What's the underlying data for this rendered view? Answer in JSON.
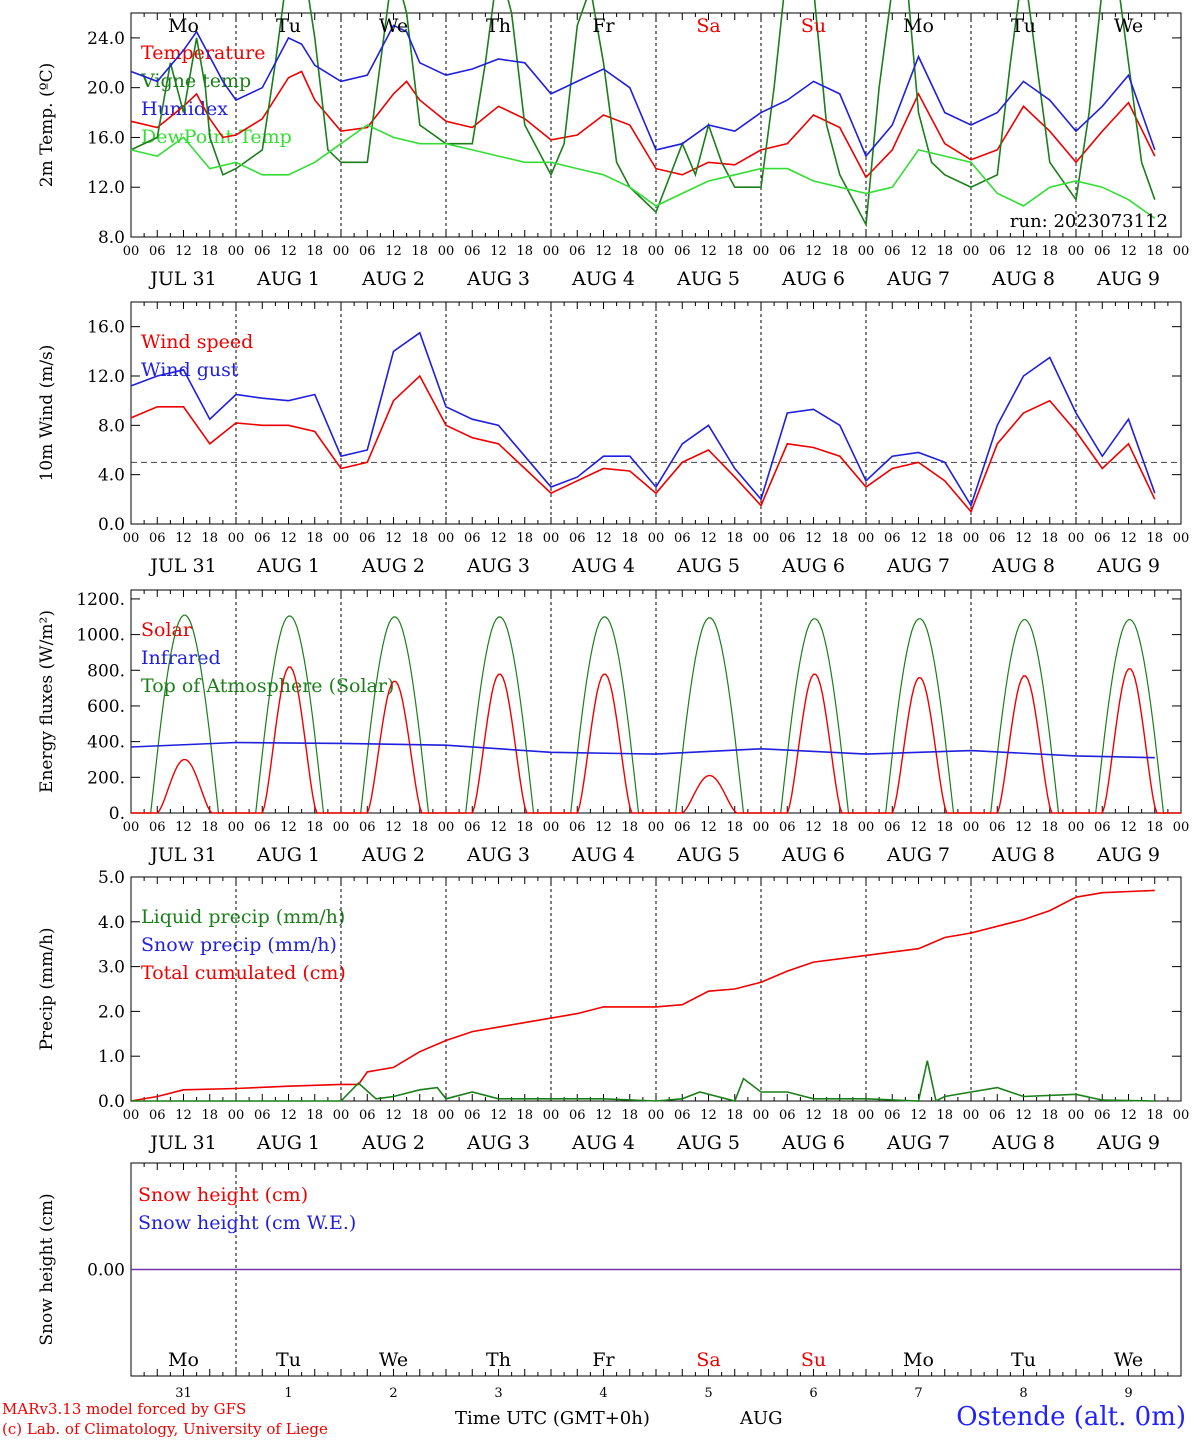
{
  "run_label": "run: 2023073112",
  "days": [
    {
      "dow": "Mo",
      "date": "JUL 31",
      "day": "31",
      "weekend": false
    },
    {
      "dow": "Tu",
      "date": "AUG  1",
      "day": "1",
      "weekend": false
    },
    {
      "dow": "We",
      "date": "AUG  2",
      "day": "2",
      "weekend": false
    },
    {
      "dow": "Th",
      "date": "AUG  3",
      "day": "3",
      "weekend": false
    },
    {
      "dow": "Fr",
      "date": "AUG  4",
      "day": "4",
      "weekend": false
    },
    {
      "dow": "Sa",
      "date": "AUG  5",
      "day": "5",
      "weekend": true
    },
    {
      "dow": "Su",
      "date": "AUG  6",
      "day": "6",
      "weekend": true
    },
    {
      "dow": "Mo",
      "date": "AUG  7",
      "day": "7",
      "weekend": false
    },
    {
      "dow": "Tu",
      "date": "AUG  8",
      "day": "8",
      "weekend": false
    },
    {
      "dow": "We",
      "date": "AUG  9",
      "day": "9",
      "weekend": false
    }
  ],
  "hour_ticks": [
    "00",
    "06",
    "12",
    "18"
  ],
  "footer": {
    "credit_line1": "MARv3.13 model forced by GFS",
    "credit_line2": "(c) Lab. of Climatology, University of Liege",
    "xaxis_title": "Time UTC (GMT+0h)",
    "month": "AUG",
    "station": "Ostende (alt. 0m)"
  },
  "colors": {
    "red": "#ee0000",
    "green": "#1a7f1a",
    "blue": "#1f1fdd",
    "lightgreen": "#33dd33",
    "purple": "#7733aa"
  },
  "chart_data": [
    {
      "type": "line",
      "ylabel": "2m Temp. (ºC)",
      "ylim": [
        8,
        26
      ],
      "yticks": [
        "8.0",
        "12.0",
        "16.0",
        "20.0",
        "24.0"
      ],
      "ytick_values": [
        8,
        12,
        16,
        20,
        24
      ],
      "show_dow": true,
      "legend": [
        {
          "name": "Temperature",
          "color": "#ee0000"
        },
        {
          "name": "Vigne temp",
          "color": "#1a7f1a"
        },
        {
          "name": "Humidex",
          "color": "#1f1fdd"
        },
        {
          "name": "DewPoint Temp",
          "color": "#33dd33"
        }
      ],
      "series": [
        {
          "name": "Temperature",
          "color": "#ee0000",
          "x": [
            0,
            6,
            12,
            15,
            18,
            21,
            24,
            30,
            36,
            39,
            42,
            48,
            54,
            60,
            63,
            66,
            72,
            78,
            84,
            90,
            96,
            102,
            108,
            114,
            120,
            126,
            132,
            138,
            144,
            150,
            156,
            162,
            168,
            174,
            180,
            186,
            192,
            198,
            204,
            210,
            216,
            222,
            228,
            234
          ],
          "y": [
            17.3,
            16.8,
            18.5,
            19.5,
            17.5,
            16,
            16.2,
            17.5,
            20.8,
            21.3,
            19,
            16.5,
            16.8,
            19.5,
            20.5,
            19,
            17.3,
            16.8,
            18.5,
            17.5,
            15.8,
            16.2,
            17.8,
            17,
            13.5,
            13,
            14,
            13.8,
            15,
            15.5,
            17.8,
            16.8,
            12.8,
            15,
            19.5,
            15.5,
            14.2,
            15,
            18.5,
            16.5,
            14,
            16.5,
            18.8,
            14.5
          ]
        },
        {
          "name": "Vigne temp",
          "color": "#1a7f1a",
          "x": [
            0,
            6,
            9,
            12,
            15,
            17,
            18,
            21,
            24,
            30,
            33,
            36,
            39,
            42,
            45,
            48,
            54,
            57,
            60,
            63,
            66,
            72,
            78,
            81,
            84,
            87,
            90,
            96,
            99,
            102,
            105,
            108,
            111,
            114,
            120,
            126,
            129,
            132,
            135,
            138,
            144,
            147,
            150,
            153,
            156,
            159,
            162,
            168,
            171,
            174,
            177,
            180,
            183,
            186,
            192,
            198,
            201,
            204,
            207,
            210,
            216,
            219,
            222,
            225,
            228,
            231,
            234
          ],
          "y": [
            15,
            16,
            22,
            18,
            24,
            20,
            16,
            13,
            13.5,
            15,
            22,
            30,
            31,
            24,
            15,
            14,
            14,
            22,
            30,
            26,
            17,
            15.5,
            15.5,
            22,
            30,
            26,
            17,
            13,
            15.5,
            25,
            28,
            22,
            14,
            12,
            10,
            15.5,
            13,
            17,
            14,
            12,
            12,
            20,
            30,
            33,
            28,
            17,
            13,
            9,
            20,
            28,
            30,
            18,
            14,
            13,
            12,
            13,
            22,
            30,
            22,
            14,
            11,
            18,
            28,
            30,
            22,
            14,
            11
          ]
        },
        {
          "name": "Humidex",
          "color": "#1f1fdd",
          "x": [
            0,
            6,
            12,
            15,
            18,
            21,
            24,
            30,
            36,
            39,
            42,
            48,
            54,
            60,
            63,
            66,
            72,
            78,
            84,
            90,
            96,
            102,
            108,
            114,
            120,
            126,
            132,
            138,
            144,
            150,
            156,
            162,
            168,
            174,
            180,
            186,
            192,
            198,
            204,
            210,
            216,
            222,
            228,
            234
          ],
          "y": [
            21.3,
            20.5,
            23,
            24.5,
            22.5,
            20.5,
            19,
            20,
            24,
            23.5,
            21.8,
            20.5,
            21,
            25,
            24.5,
            22,
            21,
            21.5,
            22.3,
            22,
            19.5,
            20.5,
            21.5,
            20,
            15,
            15.5,
            17,
            16.5,
            18,
            19,
            20.5,
            19.5,
            14.5,
            17,
            22.5,
            18,
            17,
            18,
            20.5,
            19,
            16.5,
            18.5,
            21,
            15
          ]
        },
        {
          "name": "DewPoint Temp",
          "color": "#33dd33",
          "x": [
            0,
            6,
            12,
            18,
            24,
            30,
            36,
            42,
            48,
            54,
            60,
            66,
            72,
            78,
            84,
            90,
            96,
            102,
            108,
            114,
            120,
            126,
            132,
            138,
            144,
            150,
            156,
            162,
            168,
            174,
            180,
            186,
            192,
            198,
            204,
            210,
            216,
            222,
            228,
            234
          ],
          "y": [
            15,
            14.5,
            16,
            13.5,
            14,
            13,
            13,
            14,
            15.5,
            17,
            16,
            15.5,
            15.5,
            15,
            14.5,
            14,
            14,
            13.5,
            13,
            12,
            10.5,
            11.5,
            12.5,
            13,
            13.5,
            13.5,
            12.5,
            12,
            11.5,
            12,
            15,
            14.5,
            14,
            11.5,
            10.5,
            12,
            12.5,
            12,
            11,
            9.5
          ]
        }
      ]
    },
    {
      "type": "line",
      "ylabel": "10m Wind (m/s)",
      "ylim": [
        0,
        18
      ],
      "yticks": [
        "0.0",
        "4.0",
        "8.0",
        "12.0",
        "16.0"
      ],
      "ytick_values": [
        0,
        4,
        8,
        12,
        16
      ],
      "reference_line": 5,
      "legend": [
        {
          "name": "Wind speed",
          "color": "#ee0000"
        },
        {
          "name": "Wind gust",
          "color": "#1f1fdd"
        }
      ],
      "series": [
        {
          "name": "Wind speed",
          "color": "#ee0000",
          "x": [
            0,
            6,
            12,
            18,
            24,
            30,
            36,
            42,
            48,
            54,
            60,
            66,
            72,
            78,
            84,
            90,
            96,
            102,
            108,
            114,
            120,
            126,
            132,
            138,
            144,
            150,
            156,
            162,
            168,
            174,
            180,
            186,
            192,
            198,
            204,
            210,
            216,
            222,
            228,
            234
          ],
          "y": [
            8.6,
            9.5,
            9.5,
            6.5,
            8.2,
            8,
            8,
            7.5,
            4.5,
            5,
            10,
            12,
            8,
            7,
            6.5,
            4.5,
            2.5,
            3.5,
            4.5,
            4.3,
            2.5,
            5,
            6,
            3.8,
            1.5,
            6.5,
            6.2,
            5.5,
            3,
            4.5,
            5,
            3.5,
            1,
            6.5,
            9,
            10,
            7.5,
            4.5,
            6.5,
            2
          ]
        },
        {
          "name": "Wind gust",
          "color": "#1f1fdd",
          "x": [
            0,
            6,
            12,
            18,
            24,
            30,
            36,
            42,
            48,
            54,
            60,
            66,
            72,
            78,
            84,
            90,
            96,
            102,
            108,
            114,
            120,
            126,
            132,
            138,
            144,
            150,
            156,
            162,
            168,
            174,
            180,
            186,
            192,
            198,
            204,
            210,
            216,
            222,
            228,
            234
          ],
          "y": [
            11.2,
            12,
            12.5,
            8.5,
            10.5,
            10.2,
            10,
            10.5,
            5.5,
            6,
            14,
            15.5,
            9.5,
            8.5,
            8,
            5.5,
            3,
            3.8,
            5.5,
            5.5,
            3,
            6.5,
            8,
            4.5,
            2,
            9,
            9.3,
            8,
            3.5,
            5.5,
            5.8,
            5,
            1.5,
            8,
            12,
            13.5,
            9,
            5.5,
            8.5,
            2.5
          ]
        }
      ]
    },
    {
      "type": "line",
      "ylabel": "Energy fluxes (W/m²)",
      "ylim": [
        0,
        1250
      ],
      "yticks": [
        "0.",
        "200.",
        "400.",
        "600.",
        "800.",
        "1000.",
        "1200."
      ],
      "ytick_values": [
        0,
        200,
        400,
        600,
        800,
        1000,
        1200
      ],
      "legend": [
        {
          "name": "Solar",
          "color": "#ee0000"
        },
        {
          "name": "Infrared",
          "color": "#1f1fdd"
        },
        {
          "name": "Top of Atmosphere (Solar)",
          "color": "#1a7f1a"
        }
      ],
      "toa_peak": [
        1110,
        1105,
        1100,
        1100,
        1100,
        1095,
        1090,
        1090,
        1085,
        1085
      ],
      "solar_peak": [
        300,
        820,
        740,
        780,
        780,
        210,
        780,
        760,
        770,
        810
      ],
      "series": [
        {
          "name": "Infrared",
          "color": "#1f1fdd",
          "x": [
            0,
            24,
            48,
            72,
            96,
            120,
            144,
            168,
            192,
            216,
            234
          ],
          "y": [
            370,
            395,
            390,
            380,
            340,
            330,
            360,
            330,
            350,
            320,
            310
          ]
        }
      ]
    },
    {
      "type": "line",
      "ylabel": "Precip (mm/h)",
      "ylim": [
        0,
        5
      ],
      "yticks": [
        "0.0",
        "1.0",
        "2.0",
        "3.0",
        "4.0",
        "5.0"
      ],
      "ytick_values": [
        0,
        1,
        2,
        3,
        4,
        5
      ],
      "legend": [
        {
          "name": "Liquid precip (mm/h)",
          "color": "#1a7f1a"
        },
        {
          "name": "Snow precip (mm/h)",
          "color": "#1f1fdd"
        },
        {
          "name": "Total cumulated (cm)",
          "color": "#ee0000"
        }
      ],
      "series": [
        {
          "name": "Total cumulated (cm)",
          "color": "#ee0000",
          "x": [
            0,
            6,
            12,
            24,
            36,
            48,
            52,
            54,
            60,
            66,
            72,
            78,
            84,
            96,
            102,
            108,
            120,
            126,
            132,
            138,
            144,
            150,
            156,
            168,
            180,
            186,
            192,
            204,
            210,
            216,
            222,
            234
          ],
          "y": [
            0,
            0.1,
            0.25,
            0.28,
            0.33,
            0.37,
            0.37,
            0.65,
            0.75,
            1.1,
            1.35,
            1.55,
            1.65,
            1.85,
            1.95,
            2.1,
            2.1,
            2.15,
            2.45,
            2.5,
            2.65,
            2.9,
            3.1,
            3.25,
            3.4,
            3.65,
            3.75,
            4.05,
            4.25,
            4.55,
            4.65,
            4.7
          ]
        },
        {
          "name": "Liquid precip (mm/h)",
          "color": "#1a7f1a",
          "x": [
            0,
            48,
            52,
            56,
            60,
            66,
            70,
            72,
            78,
            84,
            96,
            108,
            120,
            126,
            130,
            138,
            140,
            144,
            150,
            156,
            168,
            180,
            182,
            184,
            186,
            192,
            198,
            204,
            216,
            222,
            234
          ],
          "y": [
            0,
            0,
            0.4,
            0.05,
            0.1,
            0.25,
            0.3,
            0.05,
            0.2,
            0.05,
            0.05,
            0.05,
            0,
            0.05,
            0.2,
            0,
            0.5,
            0.2,
            0.2,
            0.05,
            0.05,
            0,
            0.9,
            0,
            0.1,
            0.2,
            0.3,
            0.1,
            0.15,
            0.02,
            0
          ]
        }
      ]
    },
    {
      "type": "line",
      "ylabel": "Snow height (cm)",
      "ylim": [
        -1,
        1
      ],
      "yticks": [
        "0.00"
      ],
      "ytick_values": [
        0
      ],
      "legend": [
        {
          "name": "Snow height (cm)",
          "color": "#ee0000"
        },
        {
          "name": "Snow height (cm W.E.)",
          "color": "#1f1fdd"
        }
      ],
      "series": [
        {
          "name": "Snow height",
          "color": "#7733aa",
          "x": [
            0,
            240
          ],
          "y": [
            0,
            0
          ]
        }
      ]
    }
  ]
}
